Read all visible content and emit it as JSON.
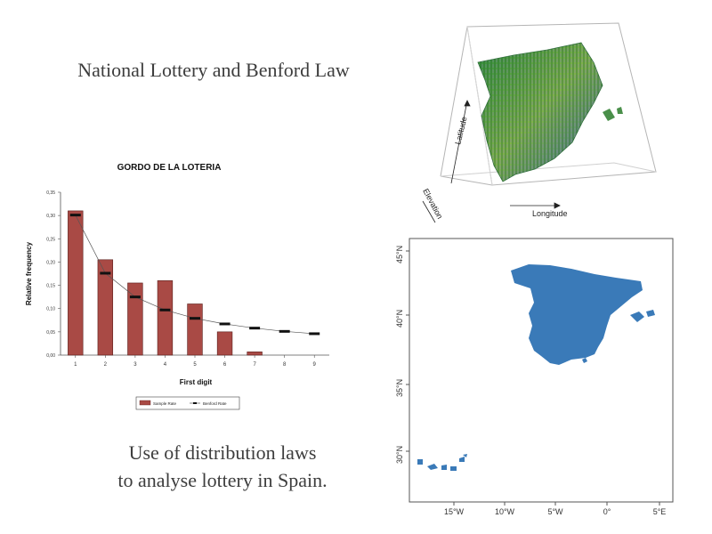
{
  "slide": {
    "title": "National Lottery and Benford Law",
    "caption_lines": [
      "Use of distribution laws",
      "to analyse lottery in Spain."
    ]
  },
  "chart_data": {
    "type": "bar",
    "title": "GORDO DE LA LOTERIA",
    "xlabel": "First digit",
    "ylabel": "Relative frequency",
    "categories": [
      "1",
      "2",
      "3",
      "4",
      "5",
      "6",
      "7",
      "8",
      "9"
    ],
    "ylim": [
      0,
      0.35
    ],
    "yticks": [
      0,
      0.05,
      0.1,
      0.15,
      0.2,
      0.25,
      0.3,
      0.35
    ],
    "ytick_labels": [
      "0,00",
      "0,05",
      "0,10",
      "0,15",
      "0,20",
      "0,25",
      "0,30",
      "0,35"
    ],
    "series": [
      {
        "name": "Sample Rate",
        "type": "bar",
        "color": "#a94a45",
        "values": [
          0.31,
          0.205,
          0.155,
          0.16,
          0.11,
          0.05,
          0.007,
          0,
          0
        ]
      },
      {
        "name": "Benford Rate",
        "type": "line",
        "color": "#555555",
        "values": [
          0.301,
          0.176,
          0.125,
          0.097,
          0.079,
          0.067,
          0.058,
          0.051,
          0.046
        ]
      }
    ],
    "legend_position": "bottom"
  },
  "plot3d": {
    "axis_labels": {
      "x": "Longitude",
      "y": "Latitude",
      "z": "Elevation"
    }
  },
  "map": {
    "fill_color": "#3a7ab8",
    "lat_ticks": [
      "45°N",
      "40°N",
      "35°N",
      "30°N"
    ],
    "lon_ticks": [
      "15°W",
      "10°W",
      "5°W",
      "0°",
      "5°E"
    ]
  }
}
